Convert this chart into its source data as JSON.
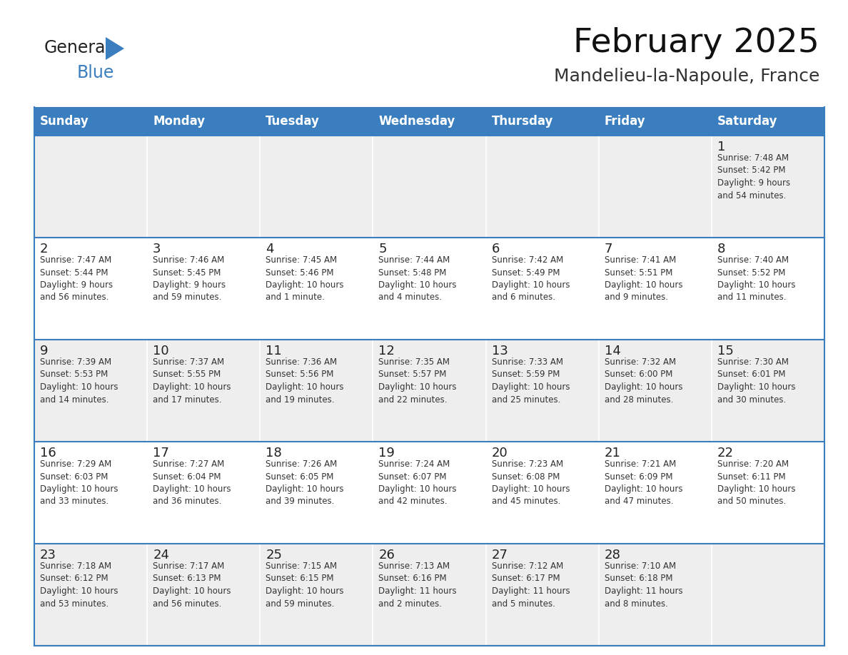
{
  "title": "February 2025",
  "subtitle": "Mandelieu-la-Napoule, France",
  "header_bg": "#3a7ebf",
  "header_text_color": "#ffffff",
  "cell_bg_gray": "#eeeeee",
  "cell_bg_white": "#ffffff",
  "border_color": "#3a7ebf",
  "text_color": "#222222",
  "day_names": [
    "Sunday",
    "Monday",
    "Tuesday",
    "Wednesday",
    "Thursday",
    "Friday",
    "Saturday"
  ],
  "weeks": [
    [
      {
        "day": null,
        "info": null
      },
      {
        "day": null,
        "info": null
      },
      {
        "day": null,
        "info": null
      },
      {
        "day": null,
        "info": null
      },
      {
        "day": null,
        "info": null
      },
      {
        "day": null,
        "info": null
      },
      {
        "day": 1,
        "info": "Sunrise: 7:48 AM\nSunset: 5:42 PM\nDaylight: 9 hours\nand 54 minutes."
      }
    ],
    [
      {
        "day": 2,
        "info": "Sunrise: 7:47 AM\nSunset: 5:44 PM\nDaylight: 9 hours\nand 56 minutes."
      },
      {
        "day": 3,
        "info": "Sunrise: 7:46 AM\nSunset: 5:45 PM\nDaylight: 9 hours\nand 59 minutes."
      },
      {
        "day": 4,
        "info": "Sunrise: 7:45 AM\nSunset: 5:46 PM\nDaylight: 10 hours\nand 1 minute."
      },
      {
        "day": 5,
        "info": "Sunrise: 7:44 AM\nSunset: 5:48 PM\nDaylight: 10 hours\nand 4 minutes."
      },
      {
        "day": 6,
        "info": "Sunrise: 7:42 AM\nSunset: 5:49 PM\nDaylight: 10 hours\nand 6 minutes."
      },
      {
        "day": 7,
        "info": "Sunrise: 7:41 AM\nSunset: 5:51 PM\nDaylight: 10 hours\nand 9 minutes."
      },
      {
        "day": 8,
        "info": "Sunrise: 7:40 AM\nSunset: 5:52 PM\nDaylight: 10 hours\nand 11 minutes."
      }
    ],
    [
      {
        "day": 9,
        "info": "Sunrise: 7:39 AM\nSunset: 5:53 PM\nDaylight: 10 hours\nand 14 minutes."
      },
      {
        "day": 10,
        "info": "Sunrise: 7:37 AM\nSunset: 5:55 PM\nDaylight: 10 hours\nand 17 minutes."
      },
      {
        "day": 11,
        "info": "Sunrise: 7:36 AM\nSunset: 5:56 PM\nDaylight: 10 hours\nand 19 minutes."
      },
      {
        "day": 12,
        "info": "Sunrise: 7:35 AM\nSunset: 5:57 PM\nDaylight: 10 hours\nand 22 minutes."
      },
      {
        "day": 13,
        "info": "Sunrise: 7:33 AM\nSunset: 5:59 PM\nDaylight: 10 hours\nand 25 minutes."
      },
      {
        "day": 14,
        "info": "Sunrise: 7:32 AM\nSunset: 6:00 PM\nDaylight: 10 hours\nand 28 minutes."
      },
      {
        "day": 15,
        "info": "Sunrise: 7:30 AM\nSunset: 6:01 PM\nDaylight: 10 hours\nand 30 minutes."
      }
    ],
    [
      {
        "day": 16,
        "info": "Sunrise: 7:29 AM\nSunset: 6:03 PM\nDaylight: 10 hours\nand 33 minutes."
      },
      {
        "day": 17,
        "info": "Sunrise: 7:27 AM\nSunset: 6:04 PM\nDaylight: 10 hours\nand 36 minutes."
      },
      {
        "day": 18,
        "info": "Sunrise: 7:26 AM\nSunset: 6:05 PM\nDaylight: 10 hours\nand 39 minutes."
      },
      {
        "day": 19,
        "info": "Sunrise: 7:24 AM\nSunset: 6:07 PM\nDaylight: 10 hours\nand 42 minutes."
      },
      {
        "day": 20,
        "info": "Sunrise: 7:23 AM\nSunset: 6:08 PM\nDaylight: 10 hours\nand 45 minutes."
      },
      {
        "day": 21,
        "info": "Sunrise: 7:21 AM\nSunset: 6:09 PM\nDaylight: 10 hours\nand 47 minutes."
      },
      {
        "day": 22,
        "info": "Sunrise: 7:20 AM\nSunset: 6:11 PM\nDaylight: 10 hours\nand 50 minutes."
      }
    ],
    [
      {
        "day": 23,
        "info": "Sunrise: 7:18 AM\nSunset: 6:12 PM\nDaylight: 10 hours\nand 53 minutes."
      },
      {
        "day": 24,
        "info": "Sunrise: 7:17 AM\nSunset: 6:13 PM\nDaylight: 10 hours\nand 56 minutes."
      },
      {
        "day": 25,
        "info": "Sunrise: 7:15 AM\nSunset: 6:15 PM\nDaylight: 10 hours\nand 59 minutes."
      },
      {
        "day": 26,
        "info": "Sunrise: 7:13 AM\nSunset: 6:16 PM\nDaylight: 11 hours\nand 2 minutes."
      },
      {
        "day": 27,
        "info": "Sunrise: 7:12 AM\nSunset: 6:17 PM\nDaylight: 11 hours\nand 5 minutes."
      },
      {
        "day": 28,
        "info": "Sunrise: 7:10 AM\nSunset: 6:18 PM\nDaylight: 11 hours\nand 8 minutes."
      },
      {
        "day": null,
        "info": null
      }
    ]
  ],
  "logo_general_color": "#222222",
  "logo_blue_color": "#3a7ebf",
  "logo_triangle_color": "#3a7ebf"
}
